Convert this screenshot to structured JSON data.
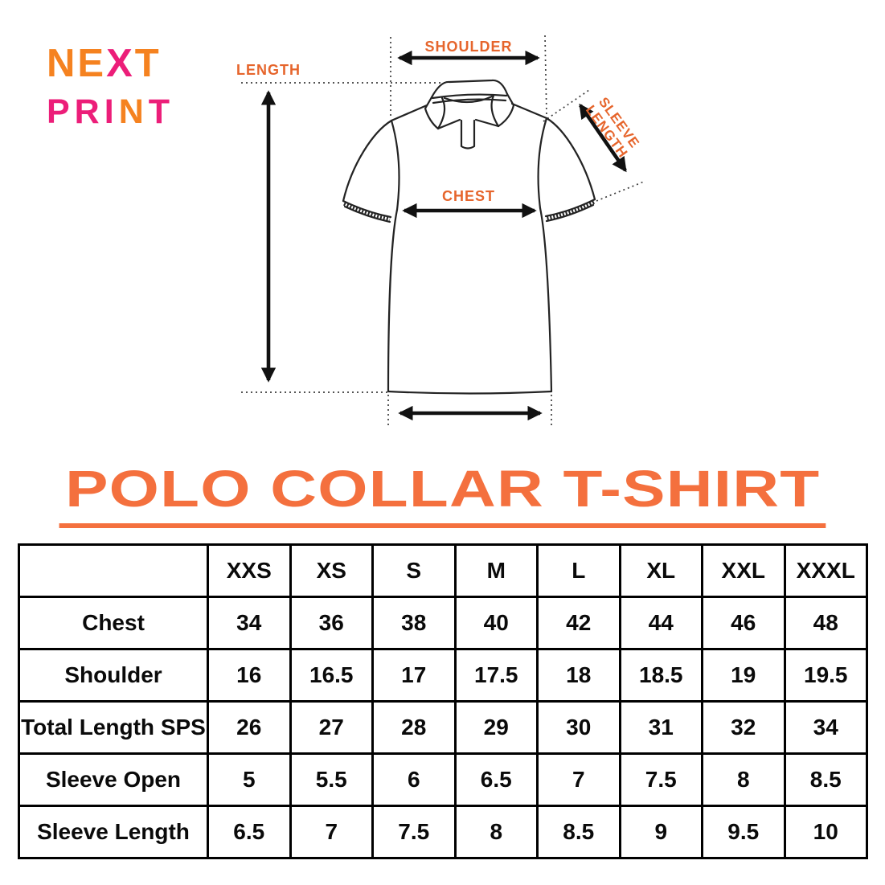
{
  "colors": {
    "label_orange": "#E6652C",
    "title_orange": "#F4703E",
    "logo_orange": "#F58220",
    "logo_magenta": "#EC1E79"
  },
  "logo": {
    "next_parts": [
      {
        "text": "NE",
        "color": "orange"
      },
      {
        "text": "X",
        "color": "magenta"
      },
      {
        "text": "T",
        "color": "orange"
      }
    ],
    "print_parts": [
      {
        "text": "PRI",
        "color": "magenta"
      },
      {
        "text": "N",
        "color": "orange"
      },
      {
        "text": "T",
        "color": "magenta"
      }
    ]
  },
  "diagram": {
    "labels": {
      "length": "LENGTH",
      "shoulder": "SHOULDER",
      "chest": "CHEST",
      "sleeve_length": "SLEEVE LENGTH"
    }
  },
  "title": "POLO COLLAR T-SHIRT",
  "size_chart": {
    "columns": [
      "XXS",
      "XS",
      "S",
      "M",
      "L",
      "XL",
      "XXL",
      "XXXL"
    ],
    "rows": [
      {
        "label": "Chest",
        "values": [
          "34",
          "36",
          "38",
          "40",
          "42",
          "44",
          "46",
          "48"
        ]
      },
      {
        "label": "Shoulder",
        "values": [
          "16",
          "16.5",
          "17",
          "17.5",
          "18",
          "18.5",
          "19",
          "19.5"
        ]
      },
      {
        "label": "Total Length SPS",
        "values": [
          "26",
          "27",
          "28",
          "29",
          "30",
          "31",
          "32",
          "34"
        ]
      },
      {
        "label": "Sleeve Open",
        "values": [
          "5",
          "5.5",
          "6",
          "6.5",
          "7",
          "7.5",
          "8",
          "8.5"
        ]
      },
      {
        "label": "Sleeve Length",
        "values": [
          "6.5",
          "7",
          "7.5",
          "8",
          "8.5",
          "9",
          "9.5",
          "10"
        ]
      }
    ]
  }
}
